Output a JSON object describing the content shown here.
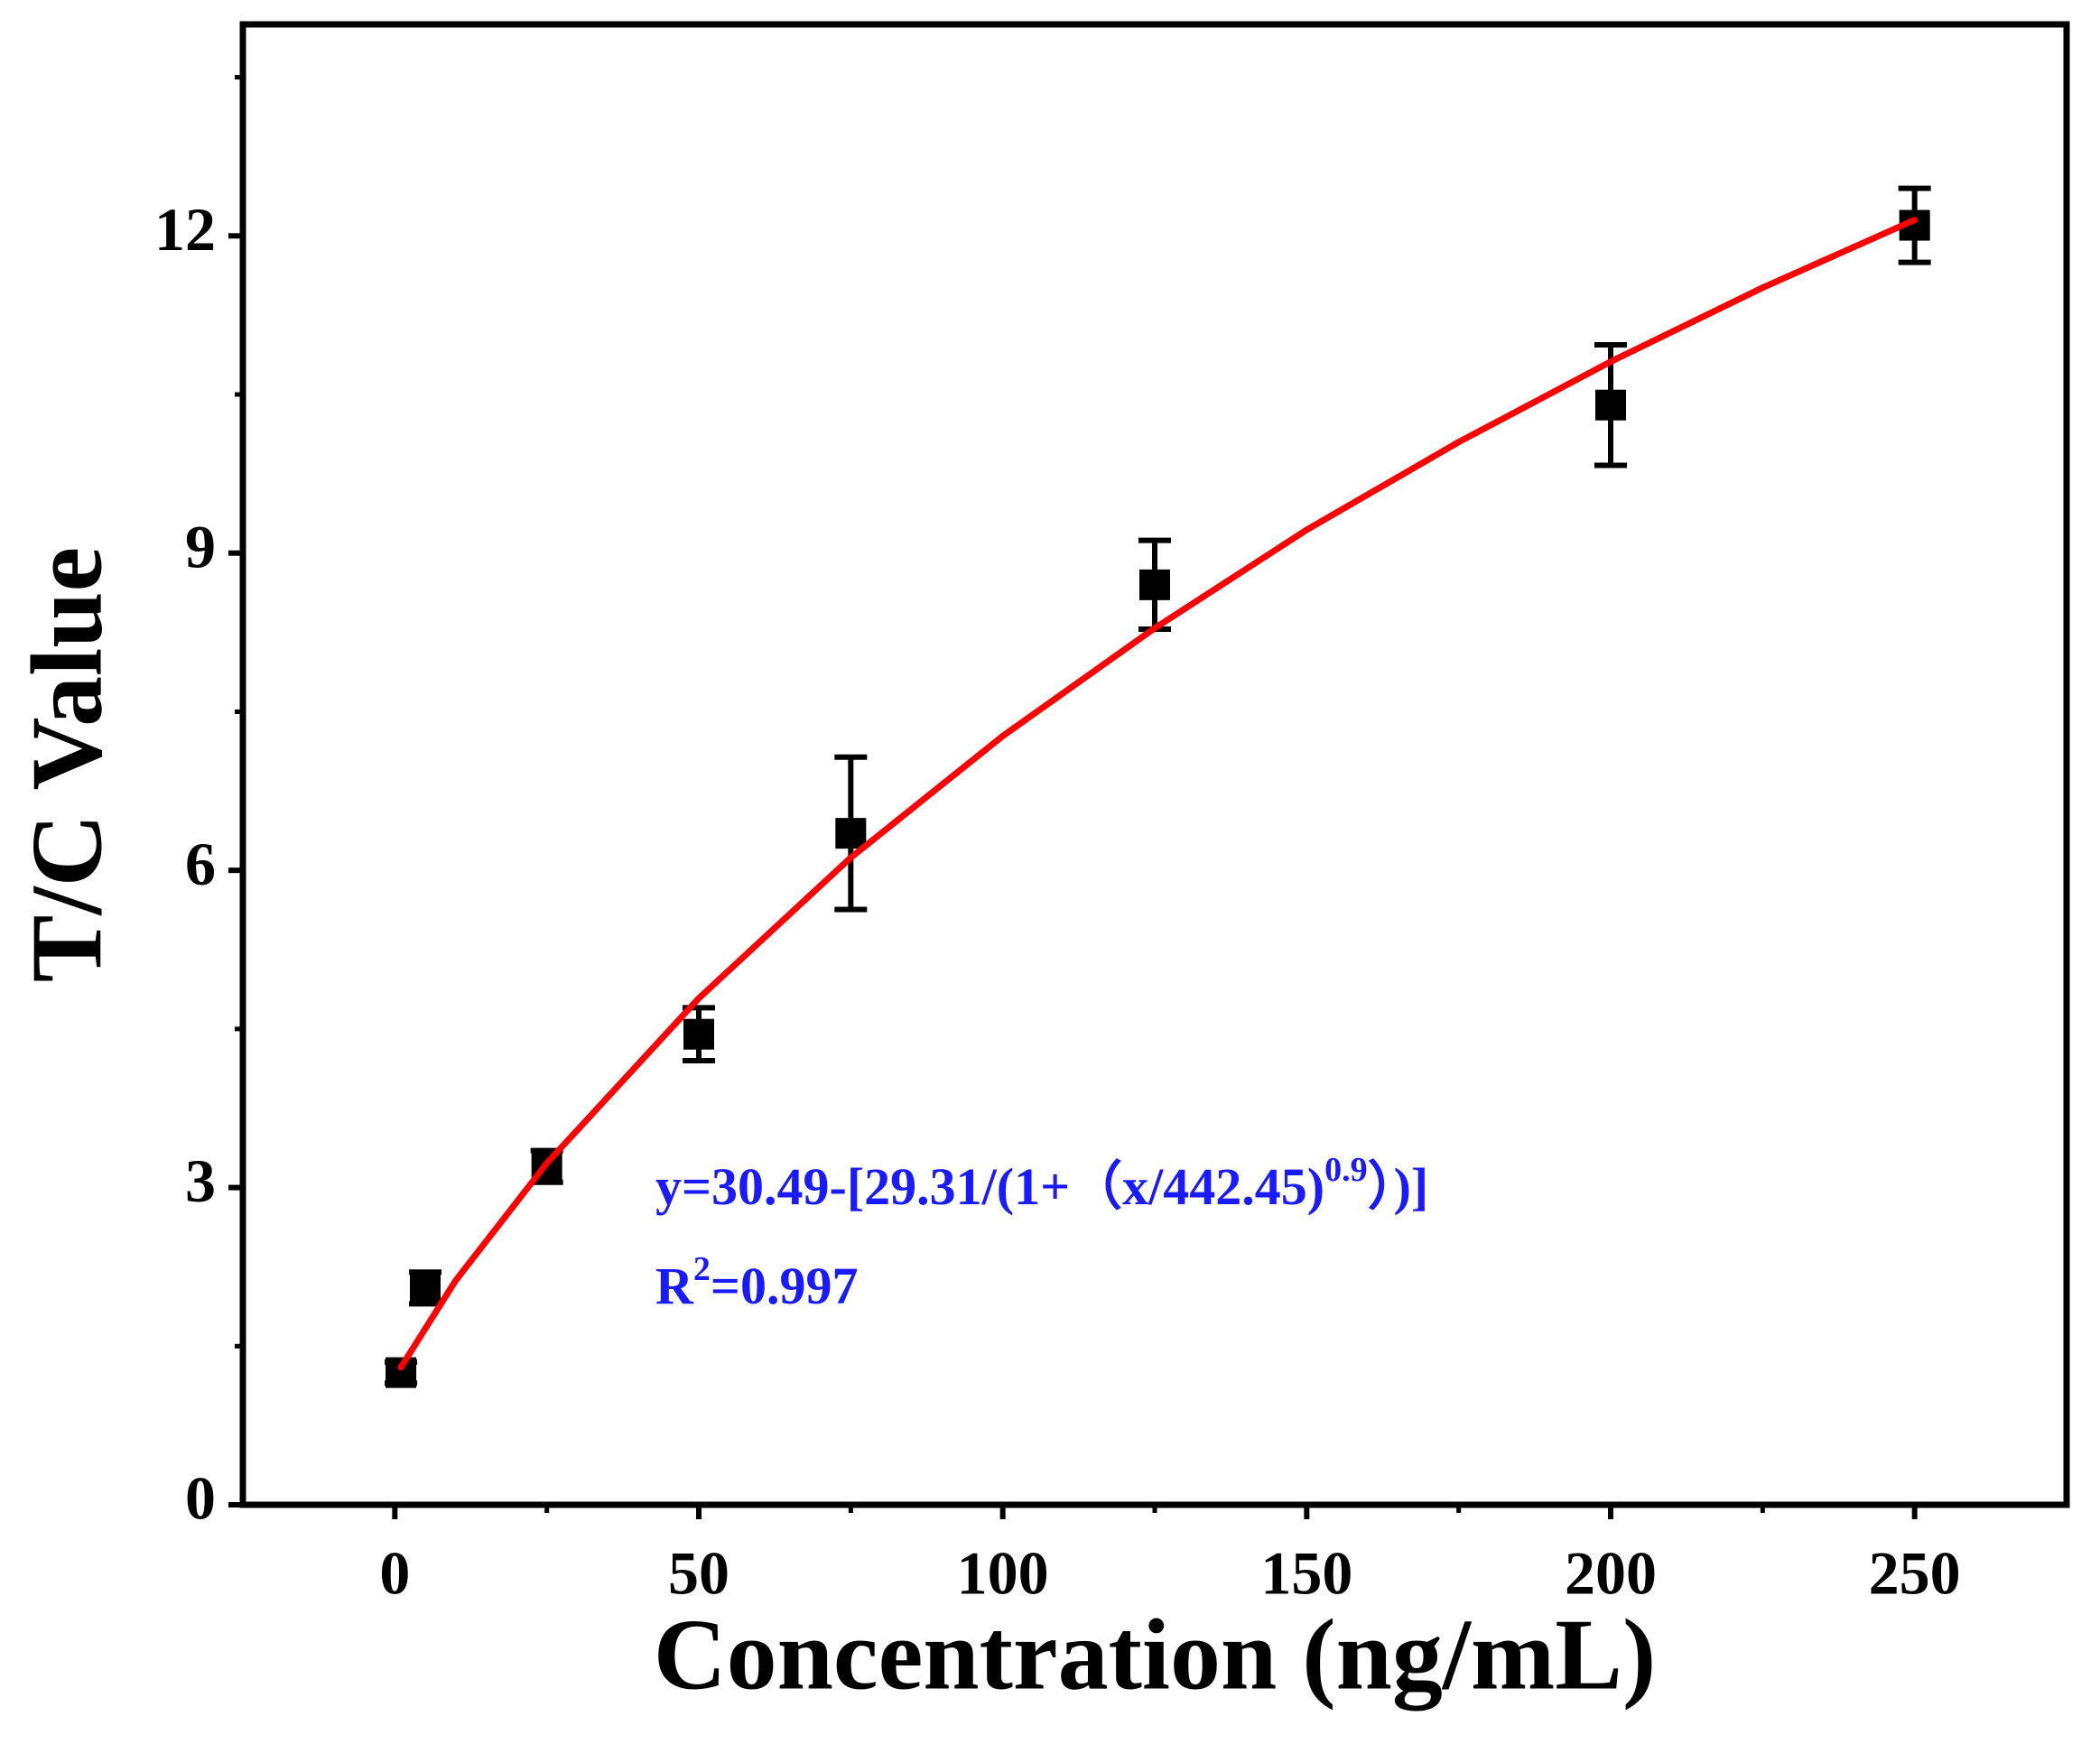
{
  "chart_data": {
    "type": "scatter",
    "x_label": "Concentration (ng/mL)",
    "y_label": "T/C Value",
    "xlim": [
      -25,
      275
    ],
    "ylim": [
      0,
      14
    ],
    "xticks": [
      0,
      50,
      100,
      150,
      200,
      250
    ],
    "yticks": [
      0,
      3,
      6,
      9,
      12
    ],
    "xminorticks": [
      25,
      75,
      125,
      175,
      225
    ],
    "yminorticks": [
      1.5,
      4.5,
      7.5,
      10.5,
      13.5
    ],
    "points": {
      "color": "#000000",
      "x": [
        1,
        5,
        25,
        50,
        75,
        125,
        200,
        250
      ],
      "values": [
        1.25,
        2.05,
        3.2,
        4.45,
        6.35,
        8.7,
        10.4,
        12.1
      ],
      "errors": [
        0.1,
        0.15,
        0.15,
        0.25,
        0.72,
        0.42,
        0.57,
        0.35
      ]
    },
    "fit": {
      "color": "#ff0000",
      "x": [
        1,
        10,
        25,
        50,
        75,
        100,
        125,
        150,
        175,
        200,
        225,
        250
      ],
      "values": [
        1.3,
        2.12,
        3.23,
        4.79,
        6.12,
        7.27,
        8.29,
        9.22,
        10.05,
        10.81,
        11.51,
        12.15
      ]
    },
    "equation": {
      "main": "y=30.49-[29.31/(1+（x/442.45)",
      "exponent": "0.9",
      "tail": "）)]"
    },
    "r_squared": {
      "base": "R",
      "exponent": "2",
      "tail": "=0.997"
    },
    "annotation_color": "#1a1aff"
  }
}
